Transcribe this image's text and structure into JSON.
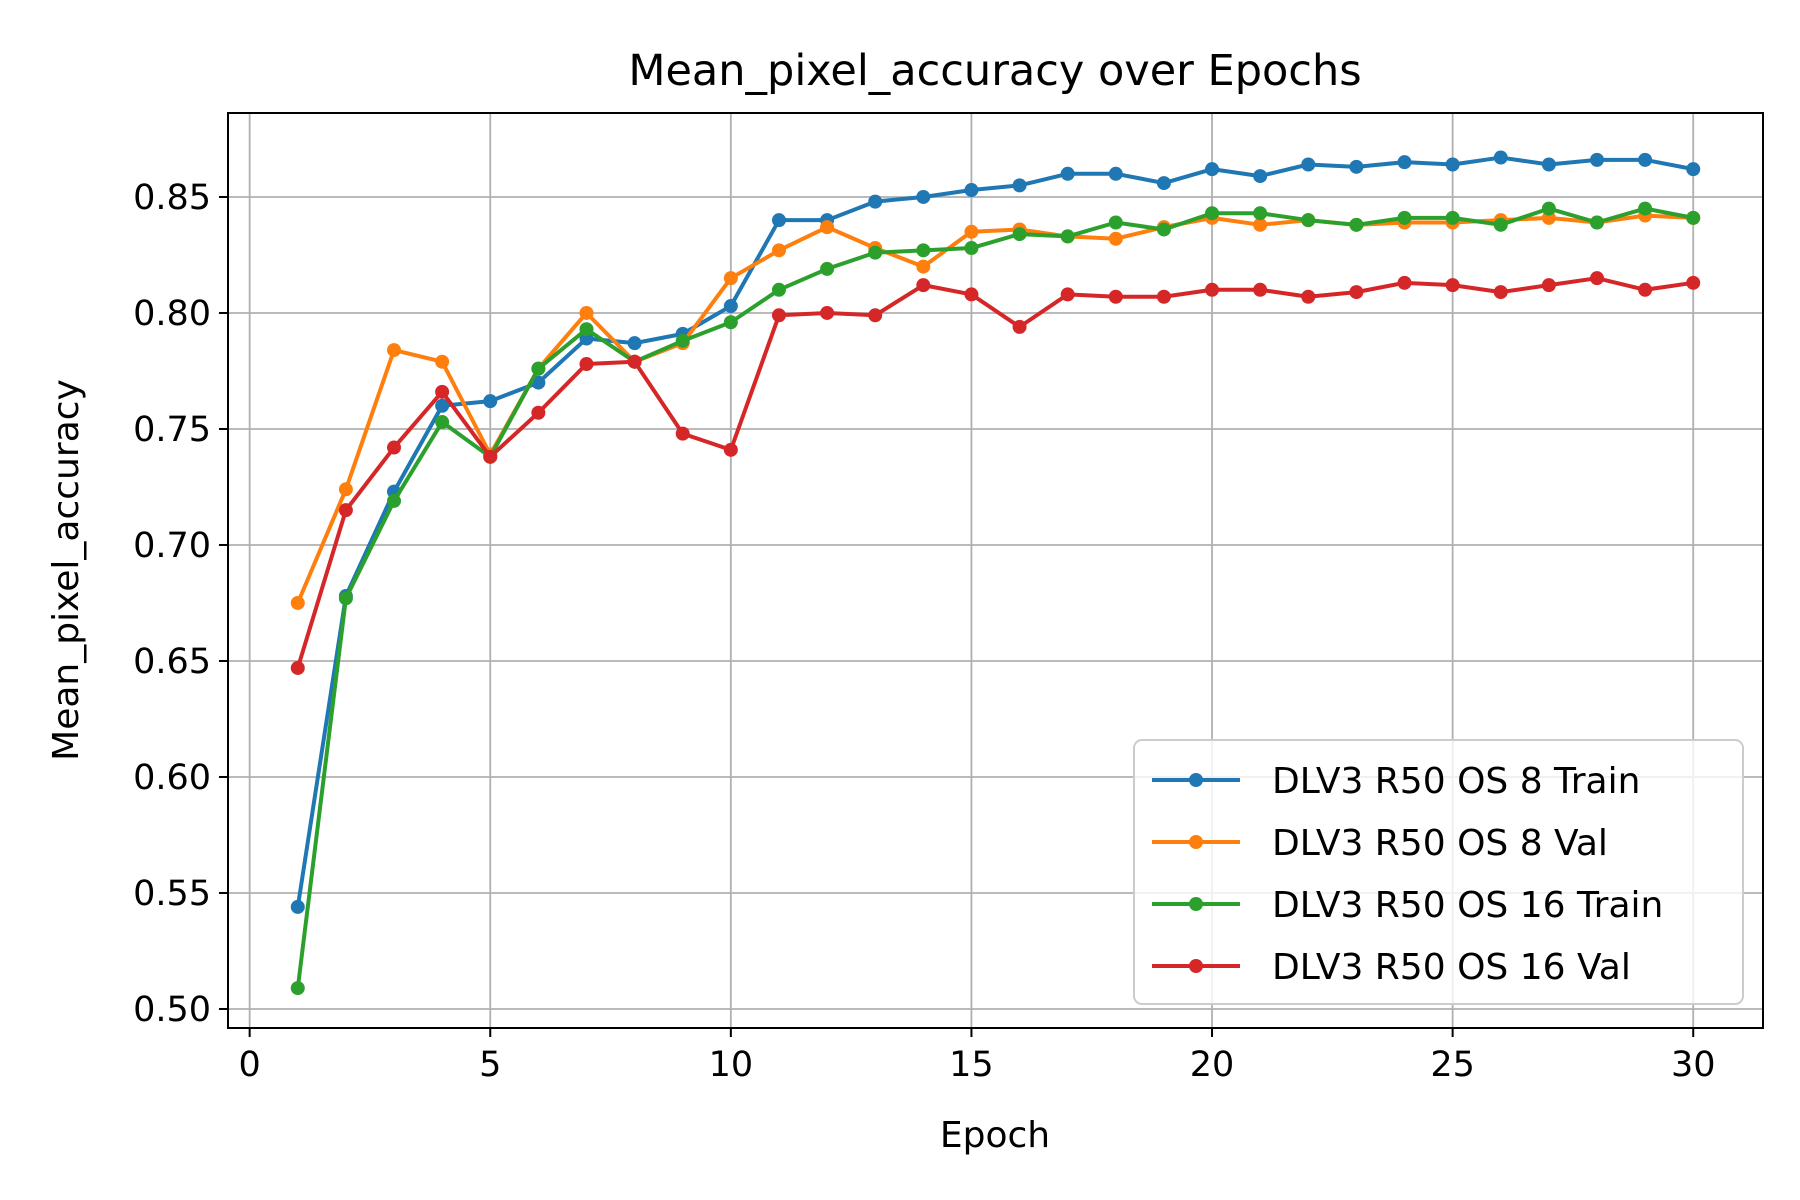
{
  "chart_data": {
    "type": "line",
    "title": "Mean_pixel_accuracy over Epochs",
    "xlabel": "Epoch",
    "ylabel": "Mean_pixel_accuracy",
    "xlim": [
      -0.45,
      31.45
    ],
    "ylim": [
      0.4918,
      0.8862
    ],
    "xticks": [
      0,
      5,
      10,
      15,
      20,
      25,
      30
    ],
    "xtick_labels": [
      "0",
      "5",
      "10",
      "15",
      "20",
      "25",
      "30"
    ],
    "yticks": [
      0.5,
      0.55,
      0.6,
      0.65,
      0.7,
      0.75,
      0.8,
      0.85
    ],
    "ytick_labels": [
      "0.50",
      "0.55",
      "0.60",
      "0.65",
      "0.70",
      "0.75",
      "0.80",
      "0.85"
    ],
    "grid": true,
    "legend_position": "lower-right",
    "x": [
      1,
      2,
      3,
      4,
      5,
      6,
      7,
      8,
      9,
      10,
      11,
      12,
      13,
      14,
      15,
      16,
      17,
      18,
      19,
      20,
      21,
      22,
      23,
      24,
      25,
      26,
      27,
      28,
      29,
      30
    ],
    "series": [
      {
        "name": "DLV3 R50 OS 8 Train",
        "color": "#1f77b4",
        "values": [
          0.544,
          0.678,
          0.723,
          0.76,
          0.762,
          0.77,
          0.789,
          0.787,
          0.791,
          0.803,
          0.84,
          0.84,
          0.848,
          0.85,
          0.853,
          0.855,
          0.86,
          0.86,
          0.856,
          0.862,
          0.859,
          0.864,
          0.863,
          0.865,
          0.864,
          0.867,
          0.864,
          0.866,
          0.866,
          0.862
        ]
      },
      {
        "name": "DLV3 R50 OS 8 Val",
        "color": "#ff7f0e",
        "values": [
          0.675,
          0.724,
          0.784,
          0.779,
          0.739,
          0.776,
          0.8,
          0.779,
          0.787,
          0.815,
          0.827,
          0.837,
          0.828,
          0.82,
          0.835,
          0.836,
          0.833,
          0.832,
          0.837,
          0.841,
          0.838,
          0.84,
          0.838,
          0.839,
          0.839,
          0.84,
          0.841,
          0.839,
          0.842,
          0.841
        ]
      },
      {
        "name": "DLV3 R50 OS 16 Train",
        "color": "#2ca02c",
        "values": [
          0.509,
          0.677,
          0.719,
          0.753,
          0.738,
          0.776,
          0.793,
          0.779,
          0.788,
          0.796,
          0.81,
          0.819,
          0.826,
          0.827,
          0.828,
          0.834,
          0.833,
          0.839,
          0.836,
          0.843,
          0.843,
          0.84,
          0.838,
          0.841,
          0.841,
          0.838,
          0.845,
          0.839,
          0.845,
          0.841
        ]
      },
      {
        "name": "DLV3 R50 OS 16 Val",
        "color": "#d62728",
        "values": [
          0.647,
          0.715,
          0.742,
          0.766,
          0.738,
          0.757,
          0.778,
          0.779,
          0.748,
          0.741,
          0.799,
          0.8,
          0.799,
          0.812,
          0.808,
          0.794,
          0.808,
          0.807,
          0.807,
          0.81,
          0.81,
          0.807,
          0.809,
          0.813,
          0.812,
          0.809,
          0.812,
          0.815,
          0.81,
          0.813
        ]
      }
    ]
  }
}
